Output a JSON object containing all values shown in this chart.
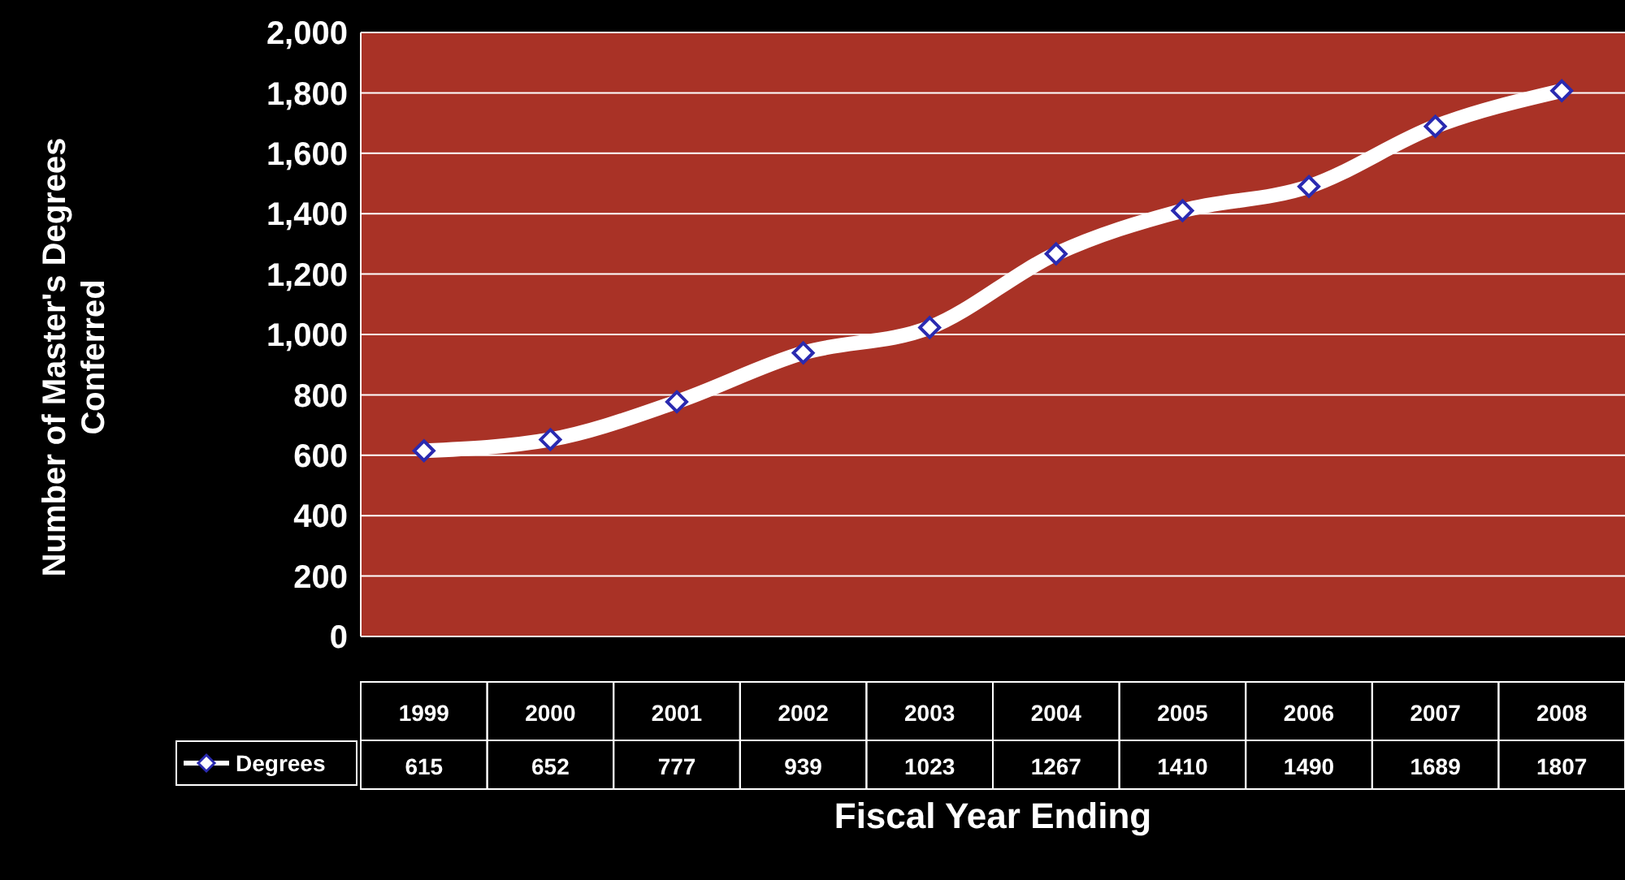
{
  "chart_data": {
    "type": "line",
    "xlabel": "Fiscal Year Ending",
    "ylabel": "Number of Master's Degrees Conferred",
    "categories": [
      "1999",
      "2000",
      "2001",
      "2002",
      "2003",
      "2004",
      "2005",
      "2006",
      "2007",
      "2008"
    ],
    "series": [
      {
        "name": "Degrees",
        "color": "#ffffff",
        "values": [
          615,
          652,
          777,
          939,
          1023,
          1267,
          1410,
          1490,
          1689,
          1807
        ]
      }
    ],
    "ylim": [
      0,
      2000
    ],
    "yticks": [
      0,
      200,
      400,
      600,
      800,
      {
        "value": 1000,
        "label": "1,000"
      },
      {
        "value": 1200,
        "label": "1,200"
      },
      {
        "value": 1400,
        "label": "1,400"
      },
      {
        "value": 1600,
        "label": "1,600"
      },
      {
        "value": 1800,
        "label": "1,800"
      },
      {
        "value": 2000,
        "label": "2,000"
      }
    ],
    "grid": "y",
    "legend": "bottom",
    "marker": "diamond",
    "line_style": "solid",
    "data_labels": true
  }
}
